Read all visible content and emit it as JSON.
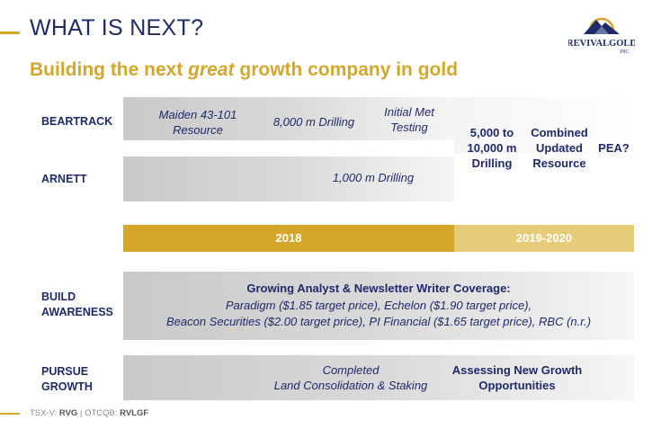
{
  "header": {
    "title": "WHAT IS NEXT?",
    "subtitle_pre": "Building the next ",
    "subtitle_em": "great",
    "subtitle_post": " growth company in gold"
  },
  "logo": {
    "brand": "REVIVALGOLD",
    "suffix": "INC.",
    "icon": "mountain-sun-logo"
  },
  "rows": {
    "beartrack": "BEARTRACK",
    "arnett": "ARNETT",
    "build_1": "BUILD",
    "build_2": "AWARENESS",
    "pursue_1": "PURSUE",
    "pursue_2": "GROWTH"
  },
  "beartrack": {
    "maiden_1": "Maiden 43-101",
    "maiden_2": "Resource",
    "drilling": "8,000 m Drilling",
    "met_1": "Initial Met",
    "met_2": "Testing"
  },
  "arnett": {
    "drilling": "1,000 m Drilling"
  },
  "future": {
    "drill_1": "5,000 to",
    "drill_2": "10,000 m",
    "drill_3": "Drilling",
    "res_1": "Combined",
    "res_2": "Updated",
    "res_3": "Resource",
    "pea": "PEA?"
  },
  "timeline": {
    "year_2018": "2018",
    "year_2019_2020": "2019-2020"
  },
  "awareness": {
    "heading": "Growing Analyst & Newsletter Writer Coverage:",
    "line1": "Paradigm ($1.85 target price), Echelon ($1.90 target price),",
    "line2": "Beacon Securities ($2.00 target price), PI Financial ($1.65 target price), RBC (n.r.)"
  },
  "growth": {
    "completed_1": "Completed",
    "completed_2": "Land Consolidation & Staking",
    "assessing_1": "Assessing New Growth",
    "assessing_2": "Opportunities"
  },
  "footer": {
    "tsx_label": "TSX-V: ",
    "tsx_ticker": "RVG",
    "sep": " | ",
    "otc_label": "OTCQB: ",
    "otc_ticker": "RVLGF"
  },
  "colors": {
    "navy": "#1F2A6B",
    "gold": "#D4A62A",
    "gold_light": "#E6CC79"
  }
}
